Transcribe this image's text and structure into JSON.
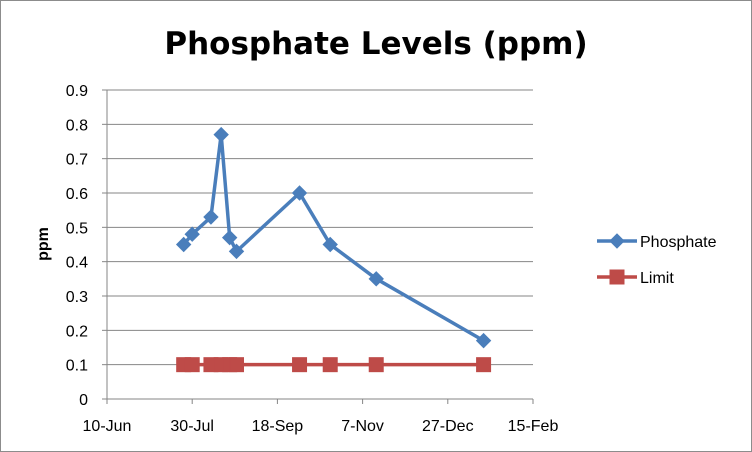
{
  "chart_data": {
    "type": "line",
    "title": "Phosphate Levels (ppm)",
    "xlabel": "",
    "ylabel": "ppm",
    "x_axis": {
      "type": "date",
      "range": [
        "10-Jun",
        "15-Feb"
      ],
      "tick_labels": [
        "10-Jun",
        "30-Jul",
        "18-Sep",
        "7-Nov",
        "27-Dec",
        "15-Feb"
      ]
    },
    "ylim": [
      0,
      0.9
    ],
    "y_ticks": [
      "0",
      "0.1",
      "0.2",
      "0.3",
      "0.4",
      "0.5",
      "0.6",
      "0.7",
      "0.8",
      "0.9"
    ],
    "grid": "horizontal",
    "legend_position": "right",
    "series": [
      {
        "name": "Phosphate",
        "color": "#4a7ebb",
        "marker": "diamond",
        "points": [
          {
            "x": "25-Jul",
            "y": 0.45
          },
          {
            "x": "30-Jul",
            "y": 0.48
          },
          {
            "x": "10-Aug",
            "y": 0.53
          },
          {
            "x": "16-Aug",
            "y": 0.77
          },
          {
            "x": "21-Aug",
            "y": 0.47
          },
          {
            "x": "25-Aug",
            "y": 0.43
          },
          {
            "x": "1-Oct",
            "y": 0.6
          },
          {
            "x": "19-Oct",
            "y": 0.45
          },
          {
            "x": "15-Nov",
            "y": 0.35
          },
          {
            "x": "17-Jan",
            "y": 0.17
          }
        ]
      },
      {
        "name": "Limit",
        "color": "#be4b48",
        "marker": "square",
        "points": [
          {
            "x": "25-Jul",
            "y": 0.1
          },
          {
            "x": "30-Jul",
            "y": 0.1
          },
          {
            "x": "10-Aug",
            "y": 0.1
          },
          {
            "x": "16-Aug",
            "y": 0.1
          },
          {
            "x": "21-Aug",
            "y": 0.1
          },
          {
            "x": "25-Aug",
            "y": 0.1
          },
          {
            "x": "1-Oct",
            "y": 0.1
          },
          {
            "x": "19-Oct",
            "y": 0.1
          },
          {
            "x": "15-Nov",
            "y": 0.1
          },
          {
            "x": "17-Jan",
            "y": 0.1
          }
        ]
      }
    ]
  }
}
